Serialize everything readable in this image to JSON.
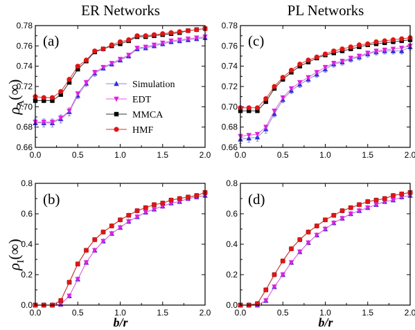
{
  "column_titles": [
    "ER Networks",
    "PL Networks"
  ],
  "xlabel": "b/r",
  "ylabel_top": "ρA(∞)",
  "ylabel_bottom": "ρI(∞)",
  "legend": [
    {
      "name": "Simulation",
      "color": "#2f2fd6",
      "marker": "triangle-up"
    },
    {
      "name": "EDT",
      "color": "#e020e0",
      "marker": "triangle-down"
    },
    {
      "name": "MMCA",
      "color": "#000000",
      "marker": "square"
    },
    {
      "name": "HMF",
      "color": "#e01515",
      "marker": "circle"
    }
  ],
  "chart_data": [
    {
      "type": "line",
      "panel_label": "(a)",
      "xlim": [
        0,
        2.0
      ],
      "ylim": [
        0.66,
        0.78
      ],
      "xticks": [
        "0.0",
        "0.5",
        "1.0",
        "1.5",
        "2.0"
      ],
      "yticks": [
        "0.66",
        "0.68",
        "0.70",
        "0.72",
        "0.74",
        "0.76",
        "0.78"
      ],
      "x": [
        0,
        0.1,
        0.2,
        0.3,
        0.4,
        0.5,
        0.6,
        0.7,
        0.8,
        0.9,
        1.0,
        1.1,
        1.2,
        1.3,
        1.4,
        1.5,
        1.6,
        1.7,
        1.8,
        1.9,
        2.0
      ],
      "series": [
        {
          "name": "Simulation",
          "values": [
            0.684,
            0.684,
            0.684,
            0.688,
            0.695,
            0.711,
            0.723,
            0.733,
            0.738,
            0.742,
            0.746,
            0.75,
            0.757,
            0.758,
            0.76,
            0.762,
            0.764,
            0.765,
            0.766,
            0.767,
            0.768
          ],
          "errors": [
            0.004,
            0.004,
            0.004,
            0.004,
            0.004,
            0.003,
            0.003,
            0.003,
            0.002,
            0.002,
            0.002,
            0.002,
            0.002,
            0.002,
            0.002,
            0.002,
            0.002,
            0.002,
            0.002,
            0.002,
            0.002
          ]
        },
        {
          "name": "EDT",
          "values": [
            0.685,
            0.685,
            0.685,
            0.689,
            0.696,
            0.713,
            0.724,
            0.734,
            0.739,
            0.743,
            0.747,
            0.751,
            0.758,
            0.759,
            0.761,
            0.763,
            0.765,
            0.766,
            0.767,
            0.768,
            0.769
          ]
        },
        {
          "name": "MMCA",
          "values": [
            0.706,
            0.706,
            0.706,
            0.712,
            0.724,
            0.737,
            0.745,
            0.754,
            0.757,
            0.76,
            0.762,
            0.765,
            0.769,
            0.769,
            0.77,
            0.771,
            0.772,
            0.773,
            0.775,
            0.776,
            0.777
          ]
        },
        {
          "name": "HMF",
          "values": [
            0.71,
            0.709,
            0.709,
            0.715,
            0.727,
            0.74,
            0.746,
            0.755,
            0.757,
            0.761,
            0.764,
            0.766,
            0.77,
            0.77,
            0.771,
            0.772,
            0.773,
            0.774,
            0.775,
            0.776,
            0.777
          ]
        }
      ]
    },
    {
      "type": "line",
      "panel_label": "(c)",
      "xlim": [
        0,
        2.0
      ],
      "ylim": [
        0.66,
        0.78
      ],
      "xticks": [
        "0.0",
        "0.5",
        "1.0",
        "1.5",
        "2.0"
      ],
      "yticks": [
        "0.66",
        "0.68",
        "0.70",
        "0.72",
        "0.74",
        "0.76",
        "0.78"
      ],
      "x": [
        0,
        0.1,
        0.2,
        0.3,
        0.4,
        0.5,
        0.6,
        0.7,
        0.8,
        0.9,
        1.0,
        1.1,
        1.2,
        1.3,
        1.4,
        1.5,
        1.6,
        1.7,
        1.8,
        1.9,
        2.0
      ],
      "series": [
        {
          "name": "Simulation",
          "values": [
            0.668,
            0.669,
            0.67,
            0.678,
            0.693,
            0.707,
            0.716,
            0.722,
            0.727,
            0.732,
            0.737,
            0.742,
            0.744,
            0.747,
            0.749,
            0.752,
            0.754,
            0.755,
            0.755,
            0.755,
            0.759
          ],
          "errors": [
            0.004,
            0.004,
            0.004,
            0.004,
            0.003,
            0.003,
            0.003,
            0.003,
            0.003,
            0.003,
            0.003,
            0.003,
            0.003,
            0.003,
            0.003,
            0.003,
            0.003,
            0.003,
            0.003,
            0.003,
            0.003
          ]
        },
        {
          "name": "EDT",
          "values": [
            0.671,
            0.672,
            0.673,
            0.68,
            0.696,
            0.709,
            0.718,
            0.724,
            0.729,
            0.734,
            0.739,
            0.743,
            0.745,
            0.748,
            0.75,
            0.753,
            0.755,
            0.756,
            0.757,
            0.758,
            0.76
          ]
        },
        {
          "name": "MMCA",
          "values": [
            0.696,
            0.696,
            0.696,
            0.705,
            0.718,
            0.727,
            0.734,
            0.74,
            0.744,
            0.748,
            0.751,
            0.753,
            0.755,
            0.757,
            0.759,
            0.761,
            0.762,
            0.763,
            0.764,
            0.765,
            0.766
          ]
        },
        {
          "name": "HMF",
          "values": [
            0.699,
            0.699,
            0.699,
            0.708,
            0.72,
            0.729,
            0.736,
            0.742,
            0.746,
            0.749,
            0.752,
            0.755,
            0.757,
            0.759,
            0.761,
            0.762,
            0.764,
            0.765,
            0.766,
            0.767,
            0.768
          ]
        }
      ]
    },
    {
      "type": "line",
      "panel_label": "(b)",
      "xlim": [
        0,
        2.0
      ],
      "ylim": [
        0,
        0.8
      ],
      "xticks": [
        "0.0",
        "0.5",
        "1.0",
        "1.5",
        "2.0"
      ],
      "yticks": [
        "0.0",
        "0.2",
        "0.4",
        "0.6",
        "0.8"
      ],
      "x": [
        0,
        0.1,
        0.2,
        0.3,
        0.4,
        0.5,
        0.6,
        0.7,
        0.8,
        0.9,
        1.0,
        1.1,
        1.2,
        1.3,
        1.4,
        1.5,
        1.6,
        1.7,
        1.8,
        1.9,
        2.0
      ],
      "series": [
        {
          "name": "Simulation",
          "values": [
            0,
            0,
            0,
            0.005,
            0.06,
            0.17,
            0.28,
            0.36,
            0.42,
            0.47,
            0.51,
            0.55,
            0.58,
            0.61,
            0.63,
            0.65,
            0.67,
            0.68,
            0.7,
            0.71,
            0.72
          ]
        },
        {
          "name": "EDT",
          "values": [
            0,
            0,
            0,
            0.005,
            0.06,
            0.17,
            0.28,
            0.36,
            0.42,
            0.47,
            0.51,
            0.55,
            0.58,
            0.61,
            0.63,
            0.65,
            0.67,
            0.68,
            0.7,
            0.71,
            0.72
          ]
        },
        {
          "name": "MMCA",
          "values": [
            0,
            0,
            0,
            0.03,
            0.15,
            0.27,
            0.36,
            0.43,
            0.48,
            0.52,
            0.56,
            0.59,
            0.62,
            0.64,
            0.66,
            0.67,
            0.69,
            0.7,
            0.71,
            0.72,
            0.74
          ]
        },
        {
          "name": "HMF",
          "values": [
            0,
            0,
            0,
            0.03,
            0.15,
            0.27,
            0.36,
            0.43,
            0.48,
            0.52,
            0.56,
            0.59,
            0.62,
            0.64,
            0.66,
            0.67,
            0.69,
            0.7,
            0.71,
            0.72,
            0.74
          ]
        }
      ]
    },
    {
      "type": "line",
      "panel_label": "(d)",
      "xlim": [
        0,
        2.0
      ],
      "ylim": [
        0,
        0.8
      ],
      "xticks": [
        "0.0",
        "0.5",
        "1.0",
        "1.5",
        "2.0"
      ],
      "yticks": [
        "0.0",
        "0.2",
        "0.4",
        "0.6",
        "0.8"
      ],
      "x": [
        0,
        0.1,
        0.2,
        0.3,
        0.4,
        0.5,
        0.6,
        0.7,
        0.8,
        0.9,
        1.0,
        1.1,
        1.2,
        1.3,
        1.4,
        1.5,
        1.6,
        1.7,
        1.8,
        1.9,
        2.0
      ],
      "series": [
        {
          "name": "Simulation",
          "values": [
            0,
            0,
            0,
            0.03,
            0.12,
            0.2,
            0.28,
            0.35,
            0.41,
            0.46,
            0.5,
            0.54,
            0.57,
            0.6,
            0.62,
            0.64,
            0.66,
            0.68,
            0.69,
            0.71,
            0.72
          ]
        },
        {
          "name": "EDT",
          "values": [
            0,
            0,
            0,
            0.03,
            0.12,
            0.2,
            0.28,
            0.35,
            0.41,
            0.46,
            0.5,
            0.54,
            0.57,
            0.6,
            0.62,
            0.64,
            0.66,
            0.68,
            0.69,
            0.71,
            0.72
          ]
        },
        {
          "name": "MMCA",
          "values": [
            0,
            0,
            0.01,
            0.1,
            0.2,
            0.29,
            0.37,
            0.43,
            0.48,
            0.52,
            0.56,
            0.59,
            0.62,
            0.64,
            0.66,
            0.68,
            0.69,
            0.7,
            0.72,
            0.73,
            0.74
          ]
        },
        {
          "name": "HMF",
          "values": [
            0,
            0,
            0.01,
            0.1,
            0.2,
            0.29,
            0.37,
            0.43,
            0.48,
            0.52,
            0.56,
            0.59,
            0.62,
            0.64,
            0.66,
            0.68,
            0.69,
            0.7,
            0.72,
            0.73,
            0.74
          ]
        }
      ]
    }
  ]
}
